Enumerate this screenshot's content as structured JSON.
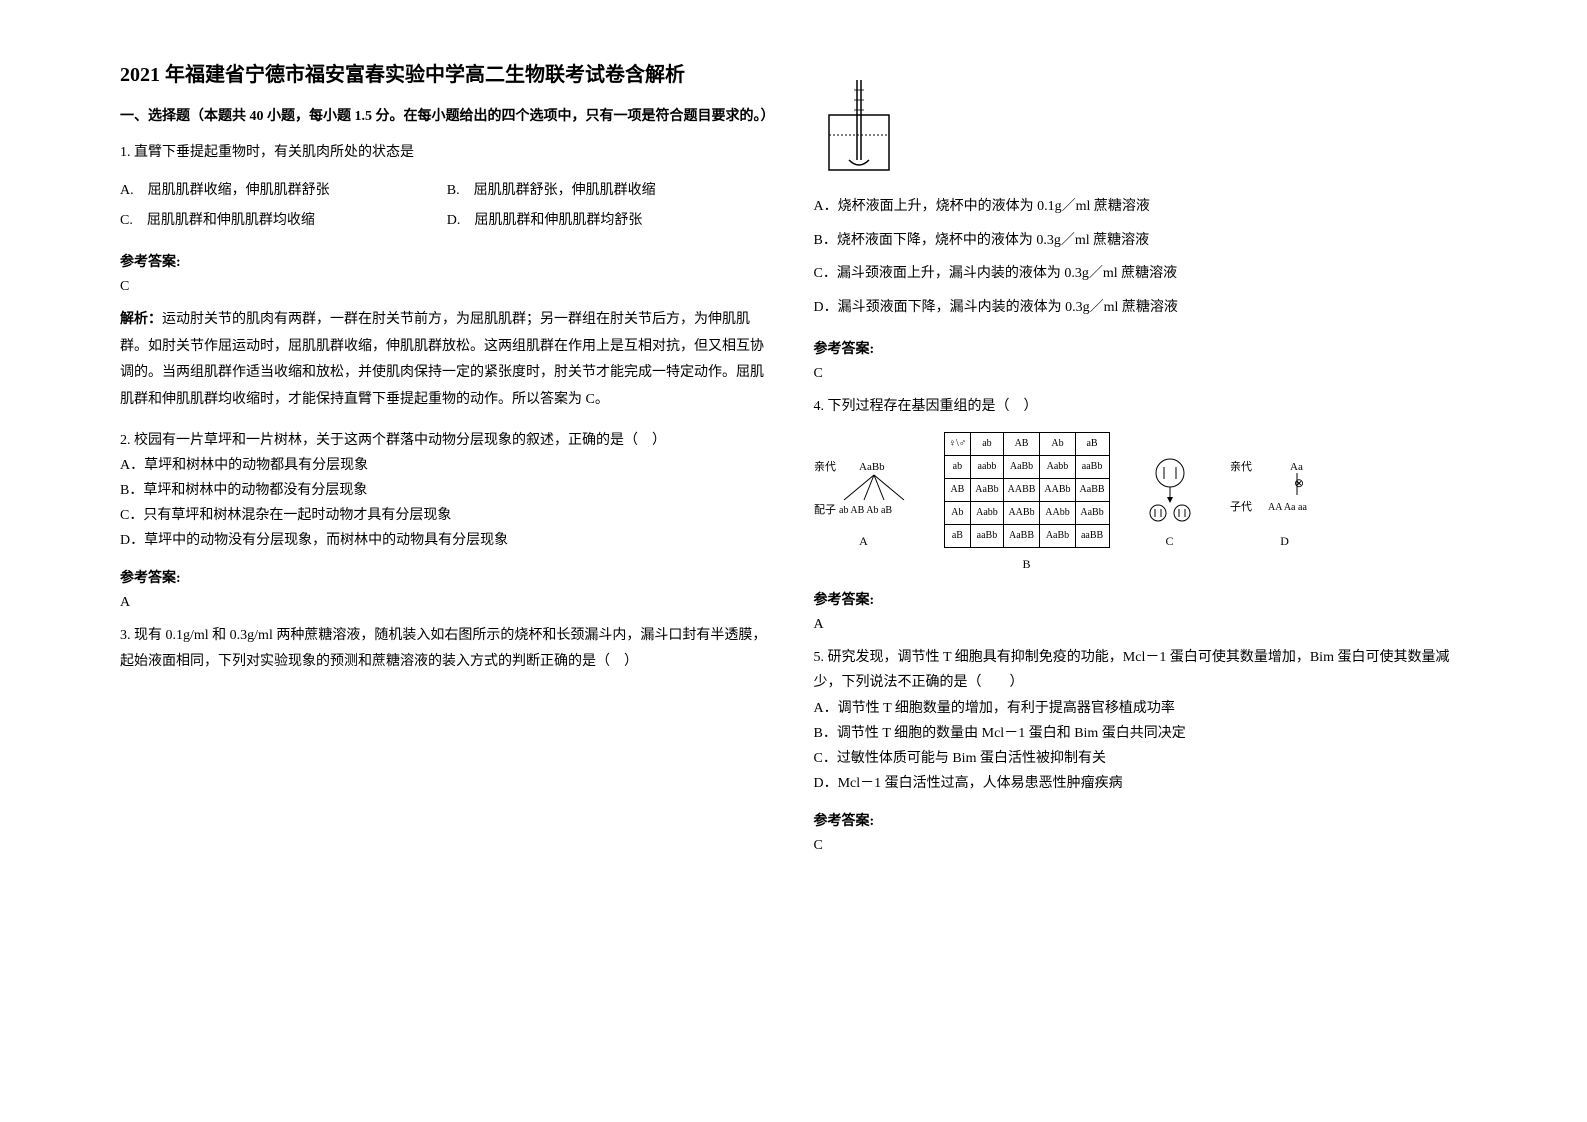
{
  "title": "2021 年福建省宁德市福安富春实验中学高二生物联考试卷含解析",
  "section_header": "一、选择题（本题共 40 小题，每小题 1.5 分。在每小题给出的四个选项中，只有一项是符合题目要求的。）",
  "q1": {
    "text": "1. 直臂下垂提起重物时，有关肌肉所处的状态是",
    "optA": "A.　屈肌肌群收缩，伸肌肌群舒张",
    "optB": "B.　屈肌肌群舒张，伸肌肌群收缩",
    "optC": "C.　屈肌肌群和伸肌肌群均收缩",
    "optD": "D.　屈肌肌群和伸肌肌群均舒张",
    "answer_label": "参考答案:",
    "answer": "C",
    "explain_label": "解析：",
    "explain": "运动肘关节的肌肉有两群，一群在肘关节前方，为屈肌肌群；另一群组在肘关节后方，为伸肌肌群。如肘关节作屈运动时，屈肌肌群收缩，伸肌肌群放松。这两组肌群在作用上是互相对抗，但又相互协调的。当两组肌群作适当收缩和放松，并使肌肉保持一定的紧张度时，肘关节才能完成一特定动作。屈肌肌群和伸肌肌群均收缩时，才能保持直臂下垂提起重物的动作。所以答案为 C。"
  },
  "q2": {
    "text": "2. 校园有一片草坪和一片树林，关于这两个群落中动物分层现象的叙述，正确的是（　）",
    "optA": "A．草坪和树林中的动物都具有分层现象",
    "optB": "B．草坪和树林中的动物都没有分层现象",
    "optC": "C．只有草坪和树林混杂在一起时动物才具有分层现象",
    "optD": "D．草坪中的动物没有分层现象，而树林中的动物具有分层现象",
    "answer_label": "参考答案:",
    "answer": "A"
  },
  "q3": {
    "text": "3. 现有 0.1g/ml 和 0.3g/ml 两种蔗糖溶液，随机装入如右图所示的烧杯和长颈漏斗内，漏斗口封有半透膜，起始液面相同，下列对实验现象的预测和蔗糖溶液的装入方式的判断正确的是（　）",
    "optA": "A．烧杯液面上升，烧杯中的液体为 0.1g／ml 蔗糖溶液",
    "optB": "B．烧杯液面下降，烧杯中的液体为 0.3g／ml 蔗糖溶液",
    "optC": "C．漏斗颈液面上升，漏斗内装的液体为 0.3g／ml 蔗糖溶液",
    "optD": "D．漏斗颈液面下降，漏斗内装的液体为 0.3g／ml 蔗糖溶液",
    "answer_label": "参考答案:",
    "answer": "C"
  },
  "q4": {
    "text": "4. 下列过程存在基因重组的是（　）",
    "labelA": "A",
    "labelB": "B",
    "labelC": "C",
    "labelD": "D",
    "parent_label": "亲代",
    "gamete_label": "配子",
    "parent_geno": "AaBb",
    "gametes": "ab AB Ab aB",
    "child_label": "子代",
    "parent_d": "Aa",
    "children_d": "AA  Aa  aa",
    "parent_right_label": "亲代",
    "punnett_headers": [
      "♀\\♂",
      "ab",
      "AB",
      "Ab",
      "aB"
    ],
    "punnett_rows": [
      [
        "ab",
        "aabb",
        "AaBb",
        "Aabb",
        "aaBb"
      ],
      [
        "AB",
        "AaBb",
        "AABB",
        "AABb",
        "AaBB"
      ],
      [
        "Ab",
        "Aabb",
        "AABb",
        "AAbb",
        "AaBb"
      ],
      [
        "aB",
        "aaBb",
        "AaBB",
        "AaBb",
        "aaBB"
      ]
    ],
    "answer_label": "参考答案:",
    "answer": "A"
  },
  "q5": {
    "text": "5. 研究发现，调节性 T 细胞具有抑制免疫的功能，Mcl－1 蛋白可使其数量增加，Bim 蛋白可使其数量减少，下列说法不正确的是（　　）",
    "optA": "A．调节性 T 细胞数量的增加，有利于提高器官移植成功率",
    "optB": "B．调节性 T 细胞的数量由 Mcl－1 蛋白和 Bim 蛋白共同决定",
    "optC": "C．过敏性体质可能与 Bim 蛋白活性被抑制有关",
    "optD": "D．Mcl－1 蛋白活性过高，人体易患恶性肿瘤疾病",
    "answer_label": "参考答案:",
    "answer": "C"
  }
}
